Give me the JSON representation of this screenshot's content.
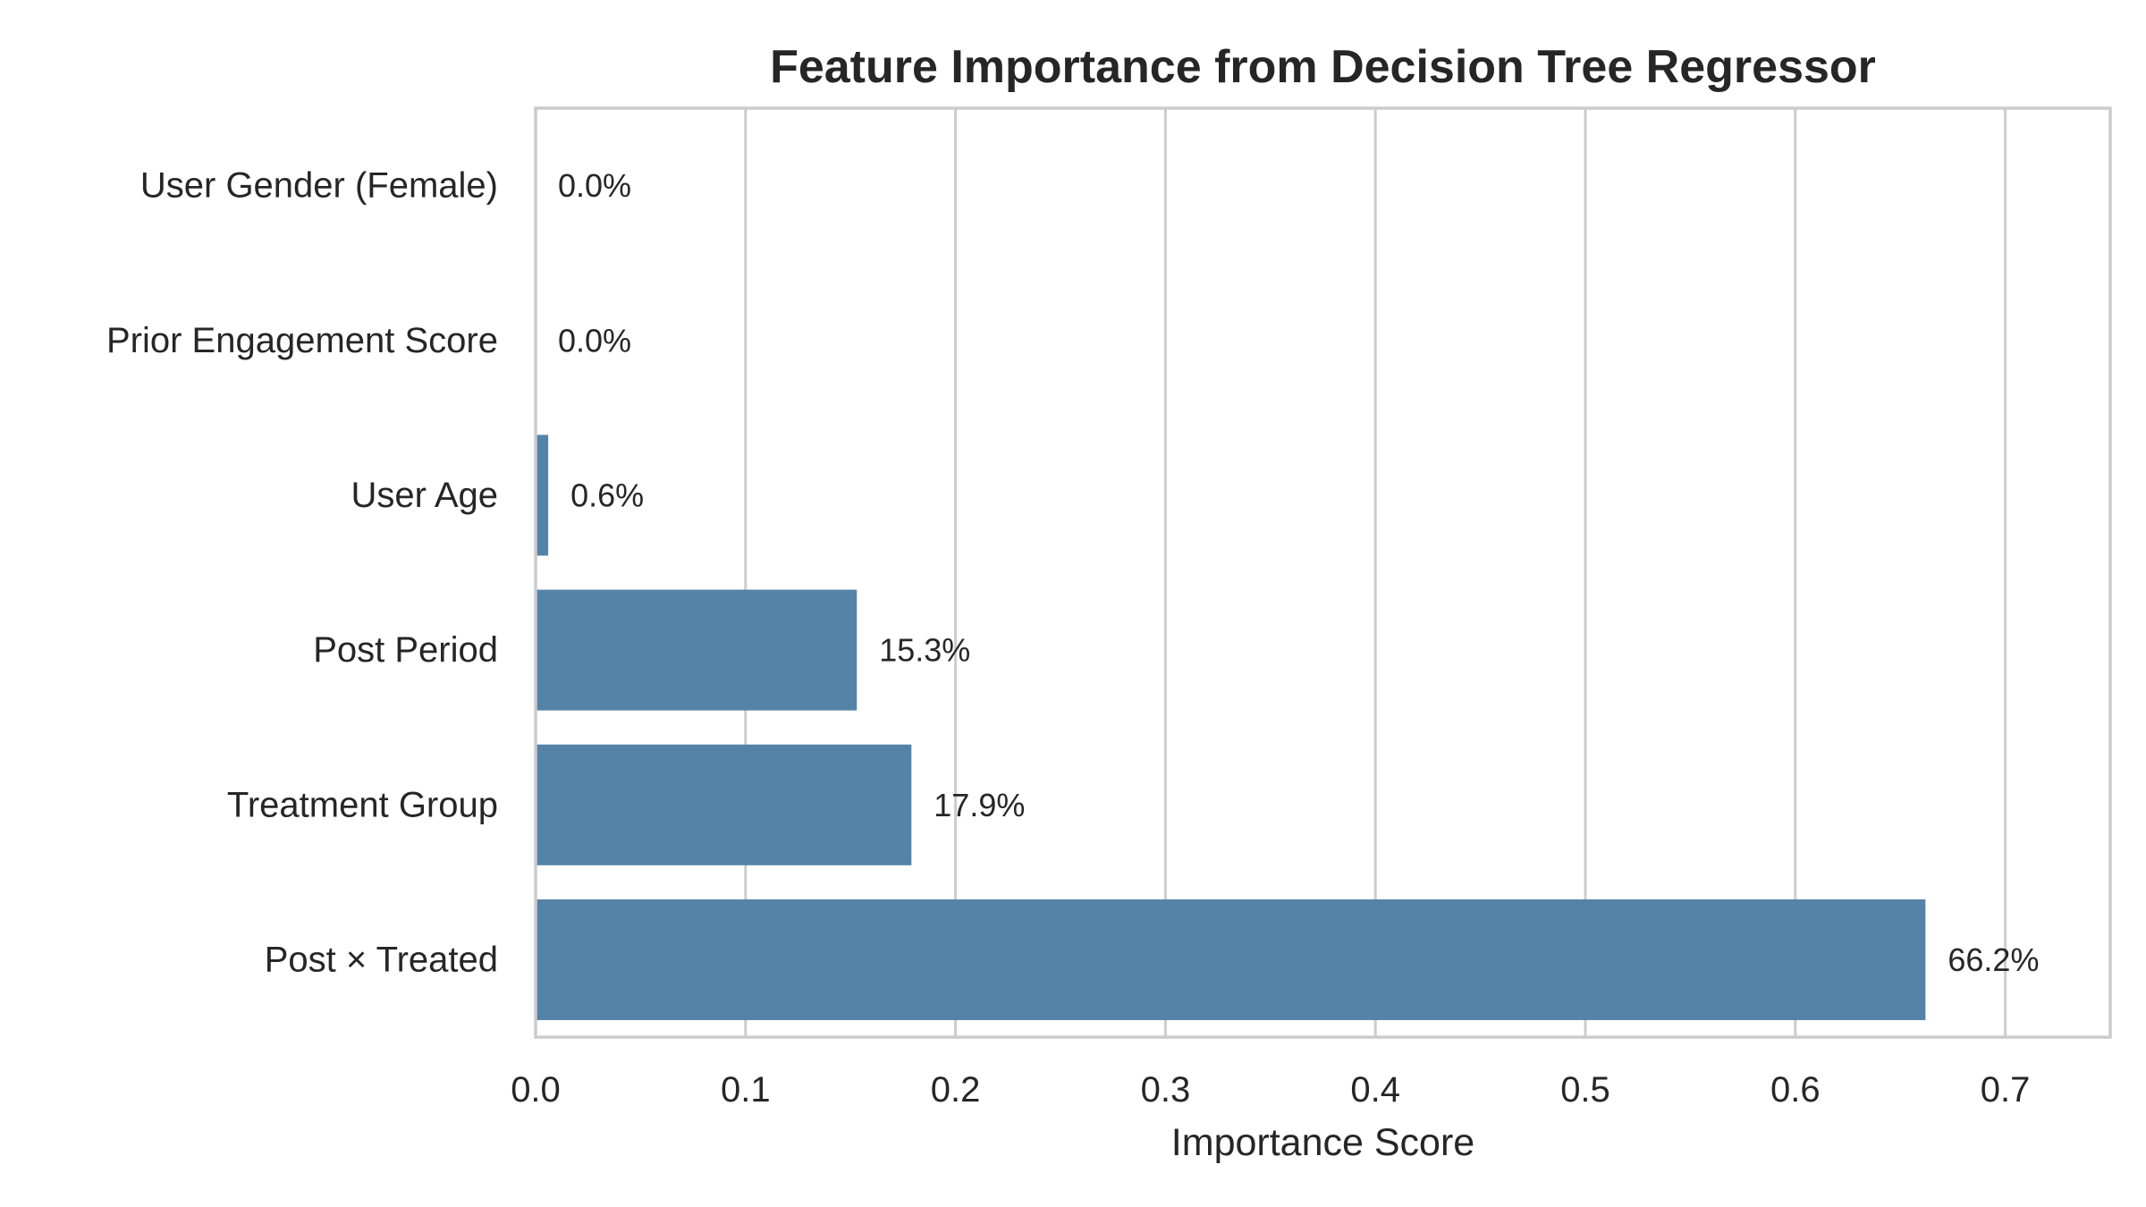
{
  "chart_data": {
    "type": "bar",
    "orientation": "horizontal",
    "title": "Feature Importance from Decision Tree Regressor",
    "xlabel": "Importance Score",
    "ylabel": "",
    "xlim": [
      0,
      0.75
    ],
    "x_ticks": [
      0.0,
      0.1,
      0.2,
      0.3,
      0.4,
      0.5,
      0.6,
      0.7
    ],
    "x_tick_labels": [
      "0.0",
      "0.1",
      "0.2",
      "0.3",
      "0.4",
      "0.5",
      "0.6",
      "0.7"
    ],
    "grid": "vertical",
    "bar_color": "#5583a8",
    "categories": [
      "User Gender (Female)",
      "Prior Engagement Score",
      "User Age",
      "Post Period",
      "Treatment Group",
      "Post × Treated"
    ],
    "values": [
      0.0,
      0.0,
      0.006,
      0.153,
      0.179,
      0.662
    ],
    "data_labels": [
      "0.0%",
      "0.0%",
      "0.6%",
      "15.3%",
      "17.9%",
      "66.2%"
    ]
  }
}
